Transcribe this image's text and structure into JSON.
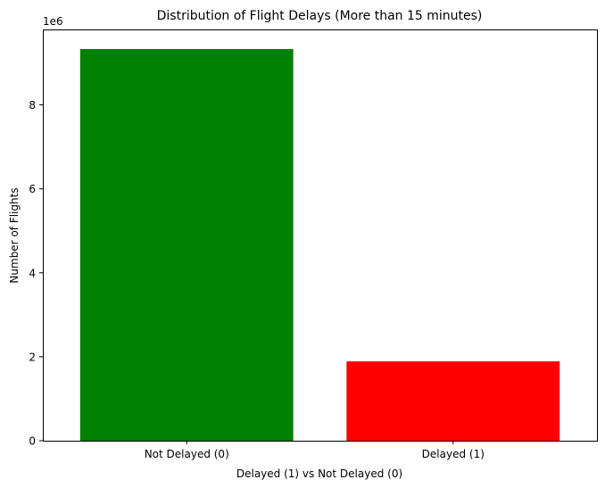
{
  "chart_data": {
    "type": "bar",
    "title": "Distribution of Flight Delays (More than 15 minutes)",
    "xlabel": "Delayed (1) vs Not Delayed (0)",
    "ylabel": "Number of Flights",
    "y_offset_label": "1e6",
    "y_scale": 1000000,
    "categories": [
      "Not Delayed (0)",
      "Delayed (1)"
    ],
    "values": [
      9330000,
      1890000
    ],
    "colors": [
      "#008000",
      "#ff0000"
    ],
    "ylim": [
      0,
      9796500
    ],
    "yticks": [
      0,
      2000000,
      4000000,
      6000000,
      8000000
    ],
    "ytick_labels": [
      "0",
      "2",
      "4",
      "6",
      "8"
    ],
    "grid": false,
    "legend": "none"
  }
}
